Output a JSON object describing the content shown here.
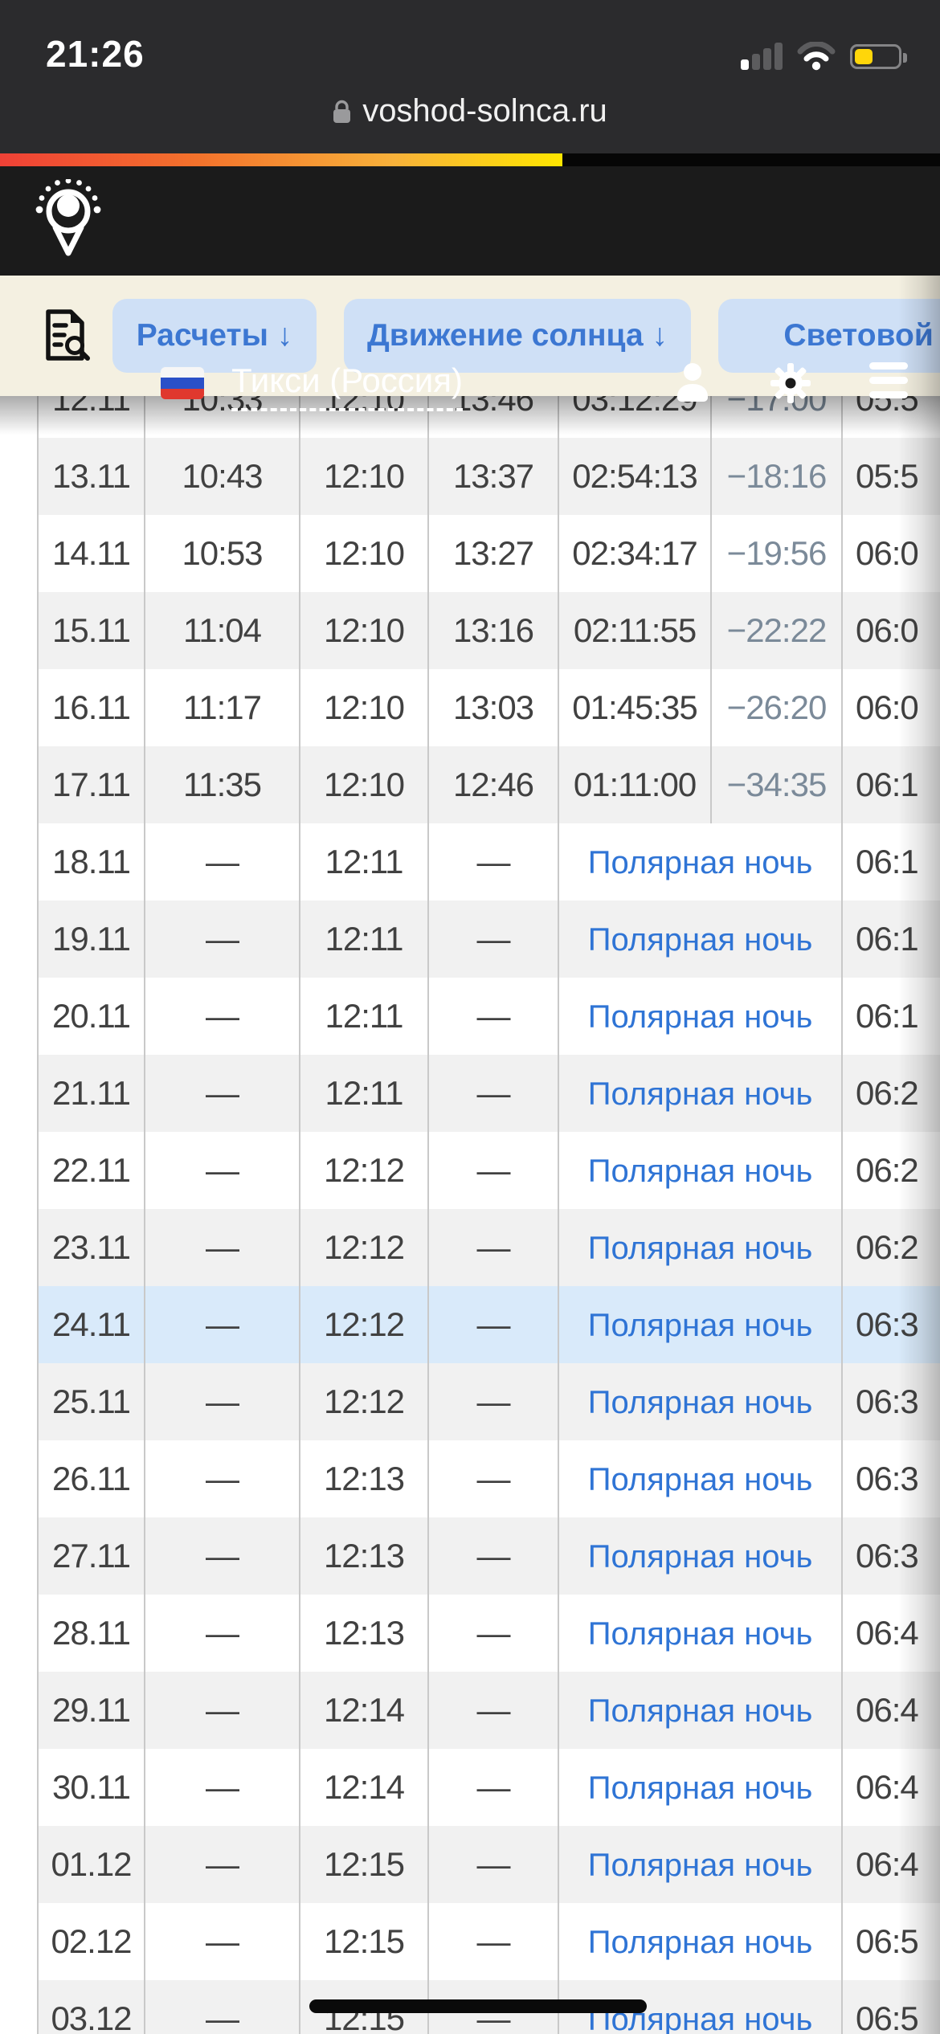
{
  "status_bar": {
    "time": "21:26",
    "cellular": "1-of-4-bars",
    "wifi": "2-of-3-arcs",
    "battery": {
      "level_visual": "35%",
      "low_power_color": "#ffd60a"
    }
  },
  "url_bar": {
    "domain": "voshod-solnca.ru",
    "secure_lock": true
  },
  "header": {
    "city_title": "Тикси (Россия)",
    "flag": "russia-flag",
    "icons": [
      "user-icon",
      "gear-icon",
      "menu-icon"
    ]
  },
  "toolbar": {
    "buttons": [
      {
        "label": "Расчеты ↓"
      },
      {
        "label": "Движение солнца ↓"
      },
      {
        "label": "Световой ден"
      }
    ],
    "doc_search_icon": "document-search-icon"
  },
  "colors": {
    "accent_blue": "#3c77d2",
    "button_bg": "#cfe0f6",
    "toolbar_bg": "#f4f0e1",
    "row_alt": "#f1f1f1",
    "row_today": "#d9eafa",
    "polar_link": "#2f74d5",
    "diff_text": "#7b8a99",
    "gradient_bar": [
      "#ef4136",
      "#ffe600"
    ]
  },
  "table": {
    "polar_label": "Полярная ночь",
    "rows": [
      {
        "date": "12.11",
        "rise": "10:33",
        "noon": "12:10",
        "set": "13:46",
        "len": "03:12:29",
        "diff": "−17:00",
        "extra": "05:5",
        "polar": false,
        "today": false
      },
      {
        "date": "13.11",
        "rise": "10:43",
        "noon": "12:10",
        "set": "13:37",
        "len": "02:54:13",
        "diff": "−18:16",
        "extra": "05:5",
        "polar": false,
        "today": false
      },
      {
        "date": "14.11",
        "rise": "10:53",
        "noon": "12:10",
        "set": "13:27",
        "len": "02:34:17",
        "diff": "−19:56",
        "extra": "06:0",
        "polar": false,
        "today": false
      },
      {
        "date": "15.11",
        "rise": "11:04",
        "noon": "12:10",
        "set": "13:16",
        "len": "02:11:55",
        "diff": "−22:22",
        "extra": "06:0",
        "polar": false,
        "today": false
      },
      {
        "date": "16.11",
        "rise": "11:17",
        "noon": "12:10",
        "set": "13:03",
        "len": "01:45:35",
        "diff": "−26:20",
        "extra": "06:0",
        "polar": false,
        "today": false
      },
      {
        "date": "17.11",
        "rise": "11:35",
        "noon": "12:10",
        "set": "12:46",
        "len": "01:11:00",
        "diff": "−34:35",
        "extra": "06:1",
        "polar": false,
        "today": false
      },
      {
        "date": "18.11",
        "rise": "—",
        "noon": "12:11",
        "set": "—",
        "extra": "06:1",
        "polar": true,
        "today": false
      },
      {
        "date": "19.11",
        "rise": "—",
        "noon": "12:11",
        "set": "—",
        "extra": "06:1",
        "polar": true,
        "today": false
      },
      {
        "date": "20.11",
        "rise": "—",
        "noon": "12:11",
        "set": "—",
        "extra": "06:1",
        "polar": true,
        "today": false
      },
      {
        "date": "21.11",
        "rise": "—",
        "noon": "12:11",
        "set": "—",
        "extra": "06:2",
        "polar": true,
        "today": false
      },
      {
        "date": "22.11",
        "rise": "—",
        "noon": "12:12",
        "set": "—",
        "extra": "06:2",
        "polar": true,
        "today": false
      },
      {
        "date": "23.11",
        "rise": "—",
        "noon": "12:12",
        "set": "—",
        "extra": "06:2",
        "polar": true,
        "today": false
      },
      {
        "date": "24.11",
        "rise": "—",
        "noon": "12:12",
        "set": "—",
        "extra": "06:3",
        "polar": true,
        "today": true
      },
      {
        "date": "25.11",
        "rise": "—",
        "noon": "12:12",
        "set": "—",
        "extra": "06:3",
        "polar": true,
        "today": false
      },
      {
        "date": "26.11",
        "rise": "—",
        "noon": "12:13",
        "set": "—",
        "extra": "06:3",
        "polar": true,
        "today": false
      },
      {
        "date": "27.11",
        "rise": "—",
        "noon": "12:13",
        "set": "—",
        "extra": "06:3",
        "polar": true,
        "today": false
      },
      {
        "date": "28.11",
        "rise": "—",
        "noon": "12:13",
        "set": "—",
        "extra": "06:4",
        "polar": true,
        "today": false
      },
      {
        "date": "29.11",
        "rise": "—",
        "noon": "12:14",
        "set": "—",
        "extra": "06:4",
        "polar": true,
        "today": false
      },
      {
        "date": "30.11",
        "rise": "—",
        "noon": "12:14",
        "set": "—",
        "extra": "06:4",
        "polar": true,
        "today": false
      },
      {
        "date": "01.12",
        "rise": "—",
        "noon": "12:15",
        "set": "—",
        "extra": "06:4",
        "polar": true,
        "today": false
      },
      {
        "date": "02.12",
        "rise": "—",
        "noon": "12:15",
        "set": "—",
        "extra": "06:5",
        "polar": true,
        "today": false
      },
      {
        "date": "03.12",
        "rise": "—",
        "noon": "12:15",
        "set": "—",
        "extra": "06:5",
        "polar": true,
        "today": false
      }
    ]
  }
}
